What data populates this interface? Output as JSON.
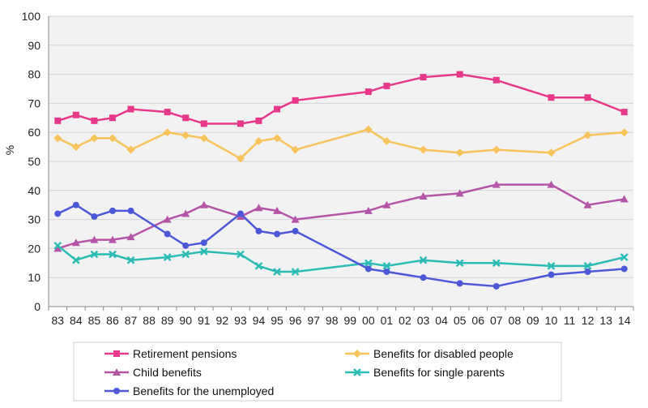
{
  "chart_data": {
    "type": "line",
    "title": "",
    "xlabel": "",
    "ylabel": "%",
    "ylim": [
      0,
      100
    ],
    "yticks": [
      0,
      10,
      20,
      30,
      40,
      50,
      60,
      70,
      80,
      90,
      100
    ],
    "grid": true,
    "legend_position": "bottom",
    "categories": [
      "83",
      "84",
      "85",
      "86",
      "87",
      "88",
      "89",
      "90",
      "91",
      "92",
      "93",
      "94",
      "95",
      "96",
      "97",
      "98",
      "99",
      "00",
      "01",
      "02",
      "03",
      "04",
      "05",
      "06",
      "07",
      "08",
      "09",
      "10",
      "11",
      "12",
      "13",
      "14"
    ],
    "series": [
      {
        "name": "Retirement pensions",
        "color": "#e8388a",
        "marker": "square",
        "points": [
          [
            "83",
            64
          ],
          [
            "84",
            66
          ],
          [
            "85",
            64
          ],
          [
            "86",
            65
          ],
          [
            "87",
            68
          ],
          [
            "89",
            67
          ],
          [
            "90",
            65
          ],
          [
            "91",
            63
          ],
          [
            "93",
            63
          ],
          [
            "94",
            64
          ],
          [
            "95",
            68
          ],
          [
            "96",
            71
          ],
          [
            "00",
            74
          ],
          [
            "01",
            76
          ],
          [
            "03",
            79
          ],
          [
            "05",
            80
          ],
          [
            "07",
            78
          ],
          [
            "10",
            72
          ],
          [
            "12",
            72
          ],
          [
            "14",
            67
          ]
        ]
      },
      {
        "name": "Benefits for disabled people",
        "color": "#f7c35a",
        "marker": "diamond",
        "points": [
          [
            "83",
            58
          ],
          [
            "84",
            55
          ],
          [
            "85",
            58
          ],
          [
            "86",
            58
          ],
          [
            "87",
            54
          ],
          [
            "89",
            60
          ],
          [
            "90",
            59
          ],
          [
            "91",
            58
          ],
          [
            "93",
            51
          ],
          [
            "94",
            57
          ],
          [
            "95",
            58
          ],
          [
            "96",
            54
          ],
          [
            "00",
            61
          ],
          [
            "01",
            57
          ],
          [
            "03",
            54
          ],
          [
            "05",
            53
          ],
          [
            "07",
            54
          ],
          [
            "10",
            53
          ],
          [
            "12",
            59
          ],
          [
            "14",
            60
          ]
        ]
      },
      {
        "name": "Child benefits",
        "color": "#b455a8",
        "marker": "triangle",
        "points": [
          [
            "83",
            20
          ],
          [
            "84",
            22
          ],
          [
            "85",
            23
          ],
          [
            "86",
            23
          ],
          [
            "87",
            24
          ],
          [
            "89",
            30
          ],
          [
            "90",
            32
          ],
          [
            "91",
            35
          ],
          [
            "93",
            31
          ],
          [
            "94",
            34
          ],
          [
            "95",
            33
          ],
          [
            "96",
            30
          ],
          [
            "00",
            33
          ],
          [
            "01",
            35
          ],
          [
            "03",
            38
          ],
          [
            "05",
            39
          ],
          [
            "07",
            42
          ],
          [
            "10",
            42
          ],
          [
            "12",
            35
          ],
          [
            "14",
            37
          ]
        ]
      },
      {
        "name": "Benefits for single parents",
        "color": "#2abcb4",
        "marker": "x",
        "points": [
          [
            "83",
            21
          ],
          [
            "84",
            16
          ],
          [
            "85",
            18
          ],
          [
            "86",
            18
          ],
          [
            "87",
            16
          ],
          [
            "89",
            17
          ],
          [
            "90",
            18
          ],
          [
            "91",
            19
          ],
          [
            "93",
            18
          ],
          [
            "94",
            14
          ],
          [
            "95",
            12
          ],
          [
            "96",
            12
          ],
          [
            "00",
            15
          ],
          [
            "01",
            14
          ],
          [
            "03",
            16
          ],
          [
            "05",
            15
          ],
          [
            "07",
            15
          ],
          [
            "10",
            14
          ],
          [
            "12",
            14
          ],
          [
            "14",
            17
          ]
        ]
      },
      {
        "name": "Benefits for the unemployed",
        "color": "#4d58d8",
        "marker": "circle",
        "points": [
          [
            "83",
            32
          ],
          [
            "84",
            35
          ],
          [
            "85",
            31
          ],
          [
            "86",
            33
          ],
          [
            "87",
            33
          ],
          [
            "89",
            25
          ],
          [
            "90",
            21
          ],
          [
            "91",
            22
          ],
          [
            "93",
            32
          ],
          [
            "94",
            26
          ],
          [
            "95",
            25
          ],
          [
            "96",
            26
          ],
          [
            "00",
            13
          ],
          [
            "01",
            12
          ],
          [
            "03",
            10
          ],
          [
            "05",
            8
          ],
          [
            "07",
            7
          ],
          [
            "10",
            11
          ],
          [
            "12",
            12
          ],
          [
            "14",
            13
          ]
        ]
      }
    ]
  }
}
